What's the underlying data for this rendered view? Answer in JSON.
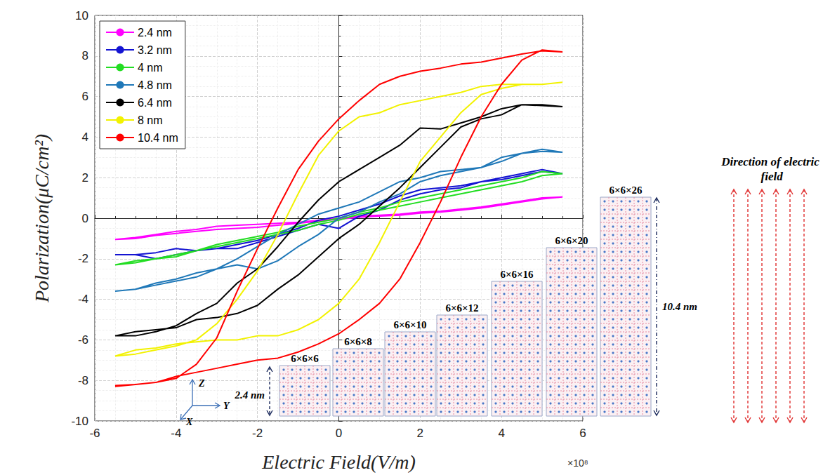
{
  "chart_data": {
    "type": "line",
    "x_label": "Electric Field(V/m)",
    "x_scale_label": "×10⁸",
    "y_label": "Polarization(μC/cm²)",
    "xlim": [
      -6,
      6
    ],
    "xticks": [
      -6,
      -4,
      -2,
      0,
      2,
      4,
      6
    ],
    "ylim": [
      -10,
      10
    ],
    "yticks": [
      -10,
      -8,
      -6,
      -4,
      -2,
      0,
      2,
      4,
      6,
      8,
      10
    ],
    "grid": true,
    "legend": "upper left",
    "x": [
      -5.5,
      -5,
      -4.5,
      -4,
      -3.5,
      -3,
      -2.5,
      -2,
      -1.5,
      -1,
      -0.5,
      0,
      0.5,
      1,
      1.5,
      2,
      2.5,
      3,
      3.5,
      4,
      4.5,
      5,
      5.5,
      5,
      4.5,
      4,
      3.5,
      3,
      2.5,
      2,
      1.5,
      1,
      0.5,
      0,
      -0.5,
      -1,
      -1.5,
      -2,
      -2.5,
      -3,
      -3.5,
      -4,
      -4.5,
      -5,
      -5.5
    ],
    "series": [
      {
        "name": "2.4 nm",
        "color": "#ff00ff",
        "values": [
          -1.05,
          -1.0,
          -0.85,
          -0.75,
          -0.65,
          -0.55,
          -0.5,
          -0.45,
          -0.35,
          -0.25,
          -0.15,
          -0.05,
          0.05,
          0.1,
          0.15,
          0.25,
          0.3,
          0.4,
          0.5,
          0.65,
          0.8,
          0.95,
          1.05,
          1.0,
          0.85,
          0.7,
          0.55,
          0.45,
          0.35,
          0.3,
          0.2,
          0.15,
          0.1,
          0.0,
          -0.1,
          -0.2,
          -0.25,
          -0.3,
          -0.35,
          -0.4,
          -0.55,
          -0.65,
          -0.8,
          -0.95,
          -1.05
        ]
      },
      {
        "name": "3.2 nm",
        "color": "#1414d2",
        "values": [
          -1.8,
          -1.8,
          -2.0,
          -1.8,
          -1.6,
          -1.5,
          -1.5,
          -1.2,
          -0.9,
          -0.6,
          -0.3,
          -0.5,
          0.1,
          0.4,
          0.9,
          1.2,
          1.4,
          1.5,
          1.8,
          1.9,
          2.1,
          2.3,
          2.2,
          2.4,
          2.2,
          2.0,
          1.8,
          1.6,
          1.5,
          1.4,
          1.1,
          0.7,
          0.4,
          0.1,
          -0.1,
          -0.5,
          -0.8,
          -1.1,
          -1.3,
          -1.5,
          -1.6,
          -1.5,
          -1.7,
          -1.8,
          -1.8
        ]
      },
      {
        "name": "4 nm",
        "color": "#22dd22",
        "values": [
          -2.3,
          -2.2,
          -2.0,
          -1.8,
          -1.6,
          -1.4,
          -1.2,
          -1.0,
          -0.8,
          -0.6,
          -0.3,
          -0.1,
          0.2,
          0.4,
          0.6,
          0.8,
          1.0,
          1.2,
          1.4,
          1.6,
          1.8,
          2.1,
          2.2,
          2.3,
          2.0,
          1.8,
          1.6,
          1.4,
          1.2,
          1.0,
          0.8,
          0.5,
          0.3,
          0.0,
          -0.2,
          -0.4,
          -0.7,
          -0.9,
          -1.1,
          -1.3,
          -1.6,
          -1.9,
          -2.0,
          -2.1,
          -2.3
        ]
      },
      {
        "name": "4.8 nm",
        "color": "#1f78b8",
        "values": [
          -3.6,
          -3.5,
          -3.2,
          -3.0,
          -2.7,
          -2.5,
          -2.3,
          -2.5,
          -2.1,
          -1.4,
          -0.8,
          0.0,
          0.3,
          0.8,
          1.2,
          1.8,
          2.1,
          2.3,
          2.5,
          2.8,
          3.2,
          3.4,
          3.25,
          3.3,
          3.2,
          3.0,
          2.5,
          2.4,
          2.3,
          2.0,
          1.8,
          1.3,
          0.8,
          0.5,
          0.2,
          -0.3,
          -0.8,
          -1.4,
          -2.0,
          -2.5,
          -2.9,
          -3.1,
          -3.3,
          -3.5,
          -3.6
        ]
      },
      {
        "name": "6.4 nm",
        "color": "#000000",
        "values": [
          -5.8,
          -5.6,
          -5.5,
          -5.4,
          -5.0,
          -4.9,
          -4.7,
          -4.3,
          -3.5,
          -2.8,
          -1.9,
          -1.0,
          -0.3,
          0.6,
          1.5,
          2.5,
          3.5,
          4.5,
          4.9,
          5.1,
          5.6,
          5.55,
          5.5,
          5.6,
          5.6,
          5.4,
          5.0,
          4.7,
          4.4,
          4.45,
          3.6,
          3.0,
          2.4,
          1.8,
          0.9,
          -0.2,
          -1.4,
          -2.5,
          -3.2,
          -4.2,
          -4.7,
          -5.3,
          -5.6,
          -5.8,
          -5.8
        ]
      },
      {
        "name": "8 nm",
        "color": "#f2f200",
        "values": [
          -6.8,
          -6.5,
          -6.4,
          -6.2,
          -6.1,
          -6.0,
          -6.0,
          -5.8,
          -5.8,
          -5.5,
          -5.0,
          -4.2,
          -3.0,
          -1.2,
          0.8,
          2.8,
          4.0,
          5.2,
          6.1,
          6.4,
          6.6,
          6.6,
          6.7,
          6.6,
          6.6,
          6.6,
          6.5,
          6.2,
          6.0,
          5.8,
          5.6,
          5.2,
          5.0,
          4.3,
          3.1,
          1.2,
          -0.8,
          -2.6,
          -4.0,
          -5.2,
          -6.0,
          -6.3,
          -6.5,
          -6.7,
          -6.8
        ]
      },
      {
        "name": "10.4 nm",
        "color": "#ff0000",
        "values": [
          -8.25,
          -8.2,
          -8.1,
          -7.8,
          -7.6,
          -7.4,
          -7.2,
          -7.0,
          -6.9,
          -6.6,
          -6.2,
          -5.7,
          -5.0,
          -4.2,
          -3.0,
          -1.2,
          0.8,
          3.0,
          5.0,
          6.6,
          7.8,
          8.3,
          8.2,
          8.25,
          8.1,
          7.9,
          7.7,
          7.6,
          7.4,
          7.25,
          7.0,
          6.6,
          5.8,
          4.9,
          3.8,
          2.4,
          0.5,
          -1.5,
          -3.6,
          -5.9,
          -7.2,
          -7.9,
          -8.1,
          -8.2,
          -8.3
        ]
      }
    ]
  },
  "diagram": {
    "supercells": [
      {
        "label": "6×6×6",
        "cells": [
          6,
          6
        ]
      },
      {
        "label": "6×6×8",
        "cells": [
          6,
          8
        ]
      },
      {
        "label": "6×6×10",
        "cells": [
          6,
          10
        ]
      },
      {
        "label": "6×6×12",
        "cells": [
          6,
          12
        ]
      },
      {
        "label": "6×6×16",
        "cells": [
          6,
          16
        ]
      },
      {
        "label": "6×6×20",
        "cells": [
          6,
          20
        ]
      },
      {
        "label": "6×6×26",
        "cells": [
          6,
          26
        ]
      }
    ],
    "height_labels": [
      "2.4 nm",
      "10.4 nm"
    ],
    "axis_glyph_labels": [
      "Z",
      "X",
      "Y"
    ],
    "field_label": "Direction of electric field"
  }
}
